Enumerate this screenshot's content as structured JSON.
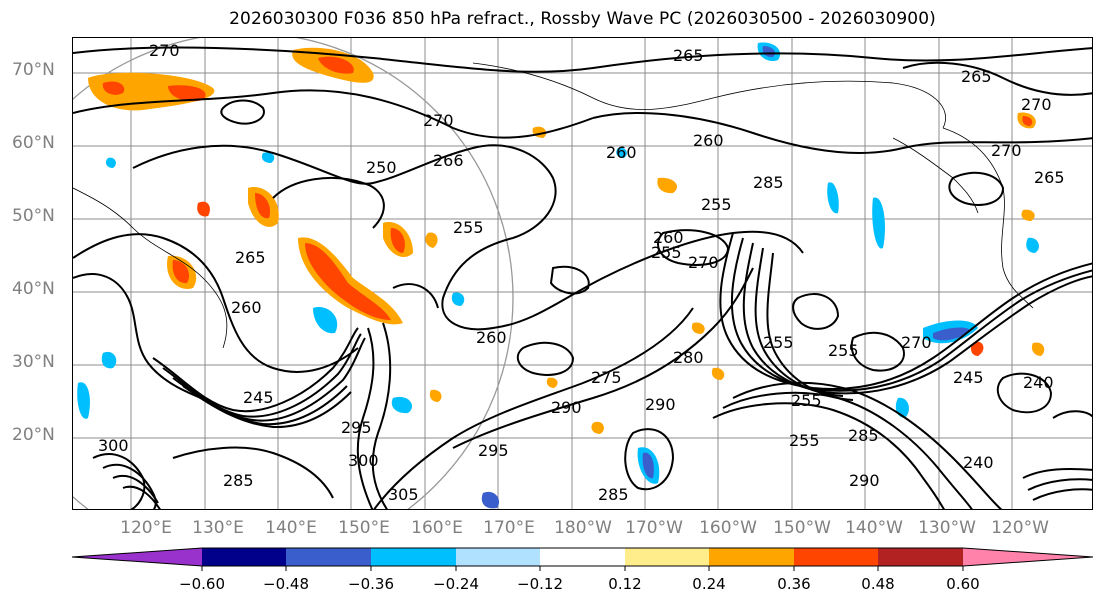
{
  "title": "2026030300 F036 850 hPa refract., Rossby Wave PC (2026030500 - 2026030900)",
  "lat_labels": [
    "70°N",
    "60°N",
    "50°N",
    "40°N",
    "30°N",
    "20°N"
  ],
  "lon_labels": [
    "120°E",
    "130°E",
    "140°E",
    "150°E",
    "160°E",
    "170°E",
    "180°W",
    "170°W",
    "160°W",
    "150°W",
    "140°W",
    "130°W",
    "120°W"
  ],
  "contour_labels": [
    "270",
    "265",
    "265",
    "270",
    "270",
    "250",
    "266",
    "255",
    "260",
    "255",
    "270",
    "260",
    "285",
    "255",
    "270",
    "260",
    "265",
    "275",
    "280",
    "255",
    "255",
    "270",
    "255",
    "245",
    "240",
    "290",
    "285",
    "255",
    "290",
    "300",
    "295",
    "305",
    "300",
    "285",
    "285",
    "290",
    "240",
    "265",
    "260",
    "260",
    "245",
    "295"
  ],
  "colorbar": {
    "colors": [
      "#9932cc",
      "#00008b",
      "#3a5fcd",
      "#00bfff",
      "#b0e2ff",
      "#ffffff",
      "#ffec8b",
      "#ffa500",
      "#ff4500",
      "#b22222",
      "#ff82ab"
    ],
    "tick_labels": [
      "−0.60",
      "−0.48",
      "−0.36",
      "−0.24",
      "−0.12",
      "0.12",
      "0.24",
      "0.36",
      "0.48",
      "0.60"
    ]
  }
}
